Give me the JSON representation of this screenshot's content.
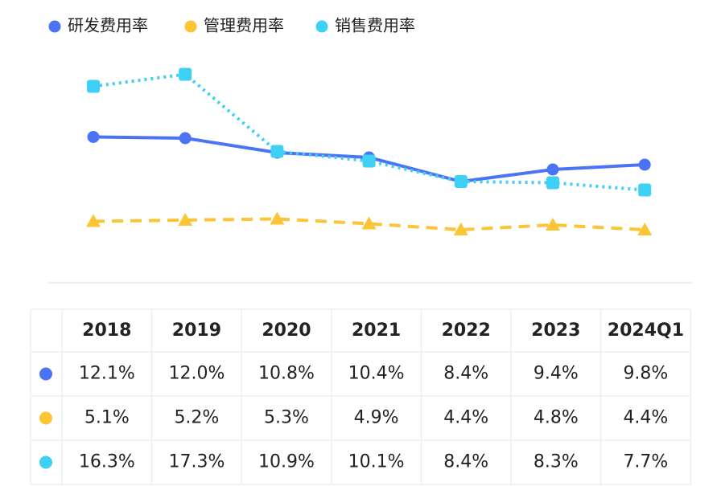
{
  "chart_data": {
    "type": "line",
    "categories": [
      "2018",
      "2019",
      "2020",
      "2021",
      "2022",
      "2023",
      "2024Q1"
    ],
    "series": [
      {
        "name": "研发费用率",
        "color": "#4a74f5",
        "values": [
          12.1,
          12.0,
          10.8,
          10.4,
          8.4,
          9.4,
          9.8
        ],
        "value_labels": [
          "12.1%",
          "12.0%",
          "10.8%",
          "10.4%",
          "8.4%",
          "9.4%",
          "9.8%"
        ]
      },
      {
        "name": "管理费用率",
        "color": "#fbc536",
        "values": [
          5.1,
          5.2,
          5.3,
          4.9,
          4.4,
          4.8,
          4.4
        ],
        "value_labels": [
          "5.1%",
          "5.2%",
          "5.3%",
          "4.9%",
          "4.4%",
          "4.8%",
          "4.4%"
        ]
      },
      {
        "name": "销售费用率",
        "color": "#3fd0f5",
        "values": [
          16.3,
          17.3,
          10.9,
          10.1,
          8.4,
          8.3,
          7.7
        ],
        "value_labels": [
          "16.3%",
          "17.3%",
          "10.9%",
          "10.1%",
          "8.4%",
          "8.3%",
          "7.7%"
        ]
      }
    ],
    "ylim": [
      0,
      20
    ]
  }
}
